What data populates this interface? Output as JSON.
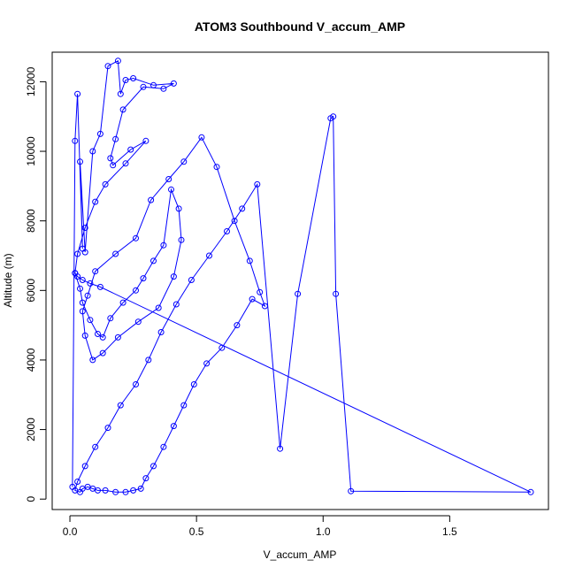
{
  "chart_data": {
    "type": "line",
    "title": "ATOM3 Southbound V_accum_AMP",
    "xlabel": "V_accum_AMP",
    "ylabel": "Altitude (m)",
    "xlim": [
      -0.07,
      1.89
    ],
    "ylim": [
      -300,
      12850
    ],
    "x_ticks": [
      0.0,
      0.5,
      1.0,
      1.5
    ],
    "x_tick_labels": [
      "0.0",
      "0.5",
      "1.0",
      "1.5"
    ],
    "y_ticks": [
      0,
      2000,
      4000,
      6000,
      8000,
      10000,
      12000
    ],
    "y_tick_labels": [
      "0",
      "2000",
      "4000",
      "6000",
      "8000",
      "10000",
      "12000"
    ],
    "grid": false,
    "markers": "open-circle",
    "color": "#0000ff",
    "series": [
      {
        "x": [
          0.01,
          0.02,
          0.03,
          0.05,
          0.04,
          0.06,
          0.09,
          0.12,
          0.15,
          0.19,
          0.2,
          0.22,
          0.25,
          0.33,
          0.41,
          0.37,
          0.29,
          0.21,
          0.18,
          0.16,
          0.17,
          0.24,
          0.3,
          0.22,
          0.14,
          0.1,
          0.06,
          0.03,
          0.02,
          0.04,
          0.05,
          0.08,
          0.11,
          0.13,
          0.16,
          0.21,
          0.26,
          0.29,
          0.33,
          0.37,
          0.4,
          0.43,
          0.44,
          0.41,
          0.35,
          0.27,
          0.19,
          0.13,
          0.09,
          0.06,
          0.05,
          0.07,
          0.1,
          0.18,
          0.26,
          0.32,
          0.39,
          0.45,
          0.52,
          0.58,
          0.65,
          0.71,
          0.75,
          0.77,
          0.72,
          0.66,
          0.6,
          0.54,
          0.49,
          0.45,
          0.41,
          0.37,
          0.33,
          0.3,
          0.28,
          0.25,
          0.22,
          0.18,
          0.14,
          0.11,
          0.09,
          0.07,
          0.05,
          0.04,
          0.02,
          0.03,
          0.06,
          0.1,
          0.15,
          0.2,
          0.26,
          0.31,
          0.36,
          0.42,
          0.48,
          0.55,
          0.62,
          0.68,
          0.74,
          0.83,
          0.9,
          1.03,
          1.04,
          1.05,
          1.11,
          1.82,
          0.12,
          0.08,
          0.05,
          0.03,
          0.02
        ],
        "y": [
          350,
          10300,
          11650,
          7200,
          9700,
          7100,
          10000,
          10500,
          12450,
          12600,
          11650,
          12050,
          12100,
          11900,
          11950,
          11800,
          11850,
          11200,
          10350,
          9800,
          9600,
          10050,
          10300,
          9650,
          9050,
          8550,
          7800,
          7050,
          6500,
          6050,
          5650,
          5150,
          4750,
          4650,
          5200,
          5650,
          6000,
          6350,
          6850,
          7300,
          8900,
          8350,
          7450,
          6400,
          5500,
          5100,
          4650,
          4200,
          4000,
          4700,
          5400,
          5850,
          6550,
          7050,
          7500,
          8600,
          9200,
          9700,
          10400,
          9550,
          8000,
          6850,
          5950,
          5550,
          5750,
          5000,
          4350,
          3900,
          3300,
          2700,
          2100,
          1500,
          950,
          600,
          300,
          250,
          200,
          200,
          250,
          250,
          300,
          350,
          300,
          200,
          250,
          500,
          950,
          1500,
          2050,
          2700,
          3300,
          4000,
          4800,
          5600,
          6300,
          7000,
          7700,
          8350,
          9050,
          1450,
          5900,
          10950,
          11000,
          5900,
          230,
          200,
          6100,
          6200,
          6300,
          6400,
          6500
        ]
      }
    ]
  }
}
